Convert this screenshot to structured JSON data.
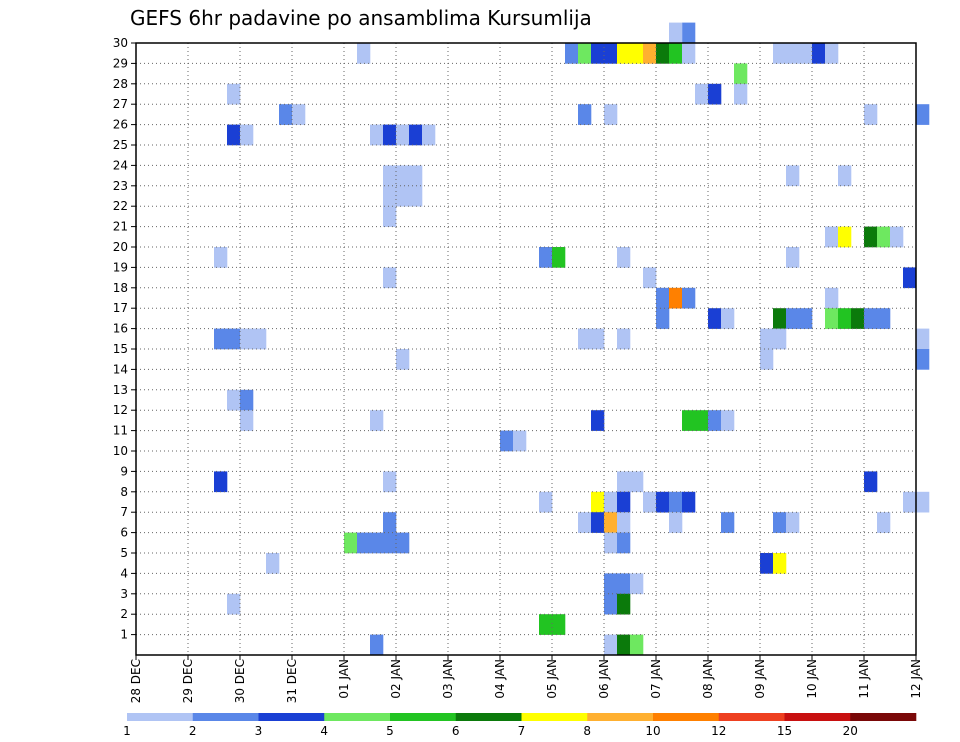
{
  "chart_data": {
    "type": "heatmap",
    "title": "GEFS 6hr padavine po ansamblima Kursumlija",
    "x_tick_labels": [
      "28 DEC",
      "29 DEC",
      "30 DEC",
      "31 DEC",
      "01 JAN",
      "02 JAN",
      "03 JAN",
      "04 JAN",
      "05 JAN",
      "06 JAN",
      "07 JAN",
      "08 JAN",
      "09 JAN",
      "10 JAN",
      "11 JAN",
      "12 JAN"
    ],
    "y_tick_labels": [
      "1",
      "2",
      "3",
      "4",
      "5",
      "6",
      "7",
      "8",
      "9",
      "10",
      "11",
      "12",
      "13",
      "14",
      "15",
      "16",
      "17",
      "18",
      "19",
      "20",
      "21",
      "22",
      "23",
      "24",
      "25",
      "26",
      "27",
      "28",
      "29",
      "30"
    ],
    "ylim": [
      0,
      30
    ],
    "steps_per_day": 4,
    "grid": true,
    "legend_position": "bottom",
    "legend": {
      "labels": [
        "1",
        "2",
        "3",
        "4",
        "5",
        "6",
        "7",
        "8",
        "10",
        "12",
        "15",
        "20"
      ],
      "colors": [
        "#b0c4f4",
        "#5a87e8",
        "#1a3fd4",
        "#6ee860",
        "#22c422",
        "#0b7a0b",
        "#ffff00",
        "#ffb030",
        "#ff8000",
        "#ee4020",
        "#c81010",
        "#7a0808"
      ]
    },
    "cells": [
      {
        "m": 30,
        "s": 42,
        "c": 2
      },
      {
        "m": 30,
        "s": 41,
        "c": 1
      },
      {
        "m": 29,
        "s": 17,
        "c": 1
      },
      {
        "m": 29,
        "s": 33,
        "c": 2
      },
      {
        "m": 29,
        "s": 34,
        "c": 4
      },
      {
        "m": 29,
        "s": 35,
        "c": 3
      },
      {
        "m": 29,
        "s": 36,
        "c": 3
      },
      {
        "m": 29,
        "s": 37,
        "c": 7
      },
      {
        "m": 29,
        "s": 38,
        "c": 7
      },
      {
        "m": 29,
        "s": 39,
        "c": 8
      },
      {
        "m": 29,
        "s": 40,
        "c": 6
      },
      {
        "m": 29,
        "s": 41,
        "c": 5
      },
      {
        "m": 29,
        "s": 42,
        "c": 1
      },
      {
        "m": 29,
        "s": 49,
        "c": 1
      },
      {
        "m": 29,
        "s": 50,
        "c": 1
      },
      {
        "m": 29,
        "s": 51,
        "c": 1
      },
      {
        "m": 29,
        "s": 52,
        "c": 3
      },
      {
        "m": 29,
        "s": 53,
        "c": 1
      },
      {
        "m": 28,
        "s": 46,
        "c": 4
      },
      {
        "m": 27,
        "s": 7,
        "c": 1
      },
      {
        "m": 27,
        "s": 43,
        "c": 1
      },
      {
        "m": 27,
        "s": 44,
        "c": 3
      },
      {
        "m": 27,
        "s": 46,
        "c": 1
      },
      {
        "m": 26,
        "s": 11,
        "c": 2
      },
      {
        "m": 26,
        "s": 12,
        "c": 1
      },
      {
        "m": 26,
        "s": 34,
        "c": 2
      },
      {
        "m": 26,
        "s": 36,
        "c": 1
      },
      {
        "m": 26,
        "s": 56,
        "c": 1
      },
      {
        "m": 26,
        "s": 60,
        "c": 2
      },
      {
        "m": 25,
        "s": 7,
        "c": 3
      },
      {
        "m": 25,
        "s": 8,
        "c": 1
      },
      {
        "m": 25,
        "s": 18,
        "c": 1
      },
      {
        "m": 25,
        "s": 19,
        "c": 3
      },
      {
        "m": 25,
        "s": 20,
        "c": 1
      },
      {
        "m": 25,
        "s": 21,
        "c": 3
      },
      {
        "m": 25,
        "s": 22,
        "c": 1
      },
      {
        "m": 23,
        "s": 19,
        "c": 1
      },
      {
        "m": 23,
        "s": 20,
        "c": 1
      },
      {
        "m": 23,
        "s": 21,
        "c": 1
      },
      {
        "m": 23,
        "s": 50,
        "c": 1
      },
      {
        "m": 23,
        "s": 54,
        "c": 1
      },
      {
        "m": 22,
        "s": 19,
        "c": 1
      },
      {
        "m": 22,
        "s": 20,
        "c": 1
      },
      {
        "m": 22,
        "s": 21,
        "c": 1
      },
      {
        "m": 21,
        "s": 19,
        "c": 1
      },
      {
        "m": 20,
        "s": 53,
        "c": 1
      },
      {
        "m": 20,
        "s": 54,
        "c": 7
      },
      {
        "m": 20,
        "s": 56,
        "c": 6
      },
      {
        "m": 20,
        "s": 57,
        "c": 4
      },
      {
        "m": 20,
        "s": 58,
        "c": 1
      },
      {
        "m": 19,
        "s": 6,
        "c": 1
      },
      {
        "m": 19,
        "s": 31,
        "c": 2
      },
      {
        "m": 19,
        "s": 32,
        "c": 5
      },
      {
        "m": 19,
        "s": 37,
        "c": 1
      },
      {
        "m": 19,
        "s": 50,
        "c": 1
      },
      {
        "m": 18,
        "s": 19,
        "c": 1
      },
      {
        "m": 18,
        "s": 39,
        "c": 1
      },
      {
        "m": 18,
        "s": 59,
        "c": 3
      },
      {
        "m": 17,
        "s": 40,
        "c": 2
      },
      {
        "m": 17,
        "s": 41,
        "c": 9
      },
      {
        "m": 17,
        "s": 42,
        "c": 2
      },
      {
        "m": 17,
        "s": 53,
        "c": 1
      },
      {
        "m": 16,
        "s": 40,
        "c": 2
      },
      {
        "m": 16,
        "s": 44,
        "c": 3
      },
      {
        "m": 16,
        "s": 45,
        "c": 1
      },
      {
        "m": 16,
        "s": 49,
        "c": 6
      },
      {
        "m": 16,
        "s": 50,
        "c": 2
      },
      {
        "m": 16,
        "s": 51,
        "c": 2
      },
      {
        "m": 16,
        "s": 53,
        "c": 4
      },
      {
        "m": 16,
        "s": 54,
        "c": 5
      },
      {
        "m": 16,
        "s": 55,
        "c": 6
      },
      {
        "m": 16,
        "s": 56,
        "c": 2
      },
      {
        "m": 16,
        "s": 57,
        "c": 2
      },
      {
        "m": 15,
        "s": 6,
        "c": 2
      },
      {
        "m": 15,
        "s": 7,
        "c": 2
      },
      {
        "m": 15,
        "s": 8,
        "c": 1
      },
      {
        "m": 15,
        "s": 9,
        "c": 1
      },
      {
        "m": 15,
        "s": 34,
        "c": 1
      },
      {
        "m": 15,
        "s": 35,
        "c": 1
      },
      {
        "m": 15,
        "s": 37,
        "c": 1
      },
      {
        "m": 15,
        "s": 48,
        "c": 1
      },
      {
        "m": 15,
        "s": 49,
        "c": 1
      },
      {
        "m": 15,
        "s": 60,
        "c": 1
      },
      {
        "m": 14,
        "s": 20,
        "c": 1
      },
      {
        "m": 14,
        "s": 48,
        "c": 1
      },
      {
        "m": 14,
        "s": 60,
        "c": 2
      },
      {
        "m": 12,
        "s": 7,
        "c": 1
      },
      {
        "m": 12,
        "s": 8,
        "c": 2
      },
      {
        "m": 11,
        "s": 8,
        "c": 1
      },
      {
        "m": 11,
        "s": 18,
        "c": 1
      },
      {
        "m": 11,
        "s": 35,
        "c": 3
      },
      {
        "m": 11,
        "s": 42,
        "c": 5
      },
      {
        "m": 11,
        "s": 43,
        "c": 5
      },
      {
        "m": 11,
        "s": 44,
        "c": 2
      },
      {
        "m": 11,
        "s": 45,
        "c": 1
      },
      {
        "m": 10,
        "s": 28,
        "c": 2
      },
      {
        "m": 10,
        "s": 29,
        "c": 1
      },
      {
        "m": 8,
        "s": 6,
        "c": 3
      },
      {
        "m": 8,
        "s": 19,
        "c": 1
      },
      {
        "m": 8,
        "s": 37,
        "c": 1
      },
      {
        "m": 8,
        "s": 38,
        "c": 1
      },
      {
        "m": 8,
        "s": 56,
        "c": 3
      },
      {
        "m": 7,
        "s": 31,
        "c": 1
      },
      {
        "m": 7,
        "s": 35,
        "c": 7
      },
      {
        "m": 7,
        "s": 36,
        "c": 1
      },
      {
        "m": 7,
        "s": 37,
        "c": 3
      },
      {
        "m": 7,
        "s": 39,
        "c": 1
      },
      {
        "m": 7,
        "s": 40,
        "c": 3
      },
      {
        "m": 7,
        "s": 41,
        "c": 2
      },
      {
        "m": 7,
        "s": 42,
        "c": 3
      },
      {
        "m": 7,
        "s": 59,
        "c": 1
      },
      {
        "m": 7,
        "s": 60,
        "c": 1
      },
      {
        "m": 6,
        "s": 19,
        "c": 2
      },
      {
        "m": 6,
        "s": 34,
        "c": 1
      },
      {
        "m": 6,
        "s": 35,
        "c": 3
      },
      {
        "m": 6,
        "s": 36,
        "c": 8
      },
      {
        "m": 6,
        "s": 37,
        "c": 1
      },
      {
        "m": 6,
        "s": 41,
        "c": 1
      },
      {
        "m": 6,
        "s": 45,
        "c": 2
      },
      {
        "m": 6,
        "s": 49,
        "c": 2
      },
      {
        "m": 6,
        "s": 50,
        "c": 1
      },
      {
        "m": 6,
        "s": 57,
        "c": 1
      },
      {
        "m": 5,
        "s": 16,
        "c": 4
      },
      {
        "m": 5,
        "s": 17,
        "c": 2
      },
      {
        "m": 5,
        "s": 18,
        "c": 2
      },
      {
        "m": 5,
        "s": 19,
        "c": 2
      },
      {
        "m": 5,
        "s": 20,
        "c": 2
      },
      {
        "m": 5,
        "s": 36,
        "c": 1
      },
      {
        "m": 5,
        "s": 37,
        "c": 2
      },
      {
        "m": 4,
        "s": 10,
        "c": 1
      },
      {
        "m": 4,
        "s": 48,
        "c": 3
      },
      {
        "m": 4,
        "s": 49,
        "c": 7
      },
      {
        "m": 3,
        "s": 36,
        "c": 2
      },
      {
        "m": 3,
        "s": 37,
        "c": 2
      },
      {
        "m": 3,
        "s": 38,
        "c": 1
      },
      {
        "m": 2,
        "s": 7,
        "c": 1
      },
      {
        "m": 2,
        "s": 36,
        "c": 2
      },
      {
        "m": 2,
        "s": 37,
        "c": 6
      },
      {
        "m": 1,
        "s": 31,
        "c": 5
      },
      {
        "m": 1,
        "s": 32,
        "c": 5
      },
      {
        "m": 0,
        "s": 18,
        "c": 2
      },
      {
        "m": 0,
        "s": 36,
        "c": 1
      },
      {
        "m": 0,
        "s": 37,
        "c": 6
      },
      {
        "m": 0,
        "s": 38,
        "c": 4
      }
    ]
  }
}
